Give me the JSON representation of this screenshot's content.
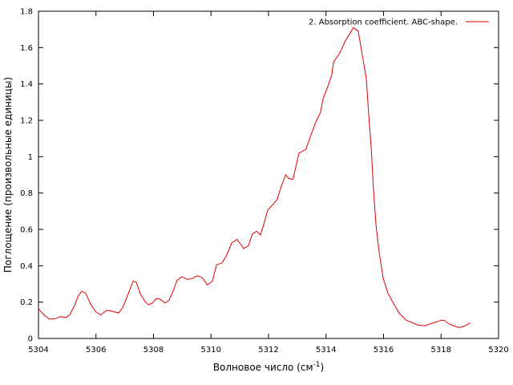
{
  "chart_data": {
    "type": "line",
    "xlabel": {
      "text": "Волновое число (см",
      "superscript": "-1",
      "suffix": ")"
    },
    "ylabel": "Поглощение (произвольные единицы)",
    "xlim": [
      5304,
      5320
    ],
    "xticks": [
      5304,
      5306,
      5308,
      5310,
      5312,
      5314,
      5316,
      5318,
      5320
    ],
    "ylim": [
      0,
      1.8
    ],
    "yticks": [
      0,
      0.2,
      0.4,
      0.6,
      0.8,
      1,
      1.2,
      1.4,
      1.6,
      1.8
    ],
    "legend": "top-right",
    "series": [
      {
        "name": "2. Absorption coefficient. ABC-shape.",
        "color": "#e00000",
        "x": [
          5304,
          5304.2,
          5304.39,
          5304.61,
          5304.75,
          5304.95,
          5305.09,
          5305.25,
          5305.37,
          5305.5,
          5305.64,
          5305.81,
          5306.0,
          5306.17,
          5306.37,
          5306.56,
          5306.79,
          5306.93,
          5307.12,
          5307.29,
          5307.4,
          5307.54,
          5307.68,
          5307.82,
          5307.96,
          5308.1,
          5308.24,
          5308.4,
          5308.54,
          5308.68,
          5308.82,
          5308.99,
          5309.18,
          5309.35,
          5309.52,
          5309.69,
          5309.88,
          5310.05,
          5310.19,
          5310.38,
          5310.55,
          5310.72,
          5310.9,
          5311.0,
          5311.14,
          5311.3,
          5311.44,
          5311.58,
          5311.72,
          5311.83,
          5311.97,
          5312.14,
          5312.3,
          5312.45,
          5312.6,
          5312.7,
          5312.85,
          5313.06,
          5313.3,
          5313.5,
          5313.67,
          5313.8,
          5313.9,
          5314.05,
          5314.2,
          5314.26,
          5314.48,
          5314.68,
          5314.84,
          5314.95,
          5315.12,
          5315.26,
          5315.4,
          5315.48,
          5315.57,
          5315.65,
          5315.74,
          5315.85,
          5315.99,
          5316.15,
          5316.32,
          5316.54,
          5316.79,
          5316.96,
          5317.16,
          5317.44,
          5317.72,
          5318.0,
          5318.11,
          5318.28,
          5318.44,
          5318.61,
          5318.77,
          5319.02
        ],
        "values": [
          0.163,
          0.128,
          0.106,
          0.11,
          0.12,
          0.115,
          0.13,
          0.18,
          0.23,
          0.26,
          0.25,
          0.19,
          0.145,
          0.13,
          0.155,
          0.15,
          0.14,
          0.17,
          0.245,
          0.315,
          0.31,
          0.245,
          0.21,
          0.185,
          0.195,
          0.22,
          0.215,
          0.195,
          0.21,
          0.26,
          0.32,
          0.34,
          0.325,
          0.33,
          0.345,
          0.335,
          0.295,
          0.315,
          0.405,
          0.415,
          0.46,
          0.525,
          0.545,
          0.525,
          0.495,
          0.51,
          0.575,
          0.59,
          0.57,
          0.625,
          0.705,
          0.735,
          0.765,
          0.84,
          0.9,
          0.88,
          0.875,
          1.02,
          1.04,
          1.13,
          1.2,
          1.24,
          1.32,
          1.38,
          1.45,
          1.52,
          1.57,
          1.64,
          1.68,
          1.71,
          1.69,
          1.56,
          1.43,
          1.24,
          1.05,
          0.82,
          0.62,
          0.47,
          0.33,
          0.25,
          0.2,
          0.14,
          0.1,
          0.09,
          0.075,
          0.07,
          0.085,
          0.1,
          0.1,
          0.08,
          0.07,
          0.06,
          0.065,
          0.085
        ]
      }
    ]
  }
}
